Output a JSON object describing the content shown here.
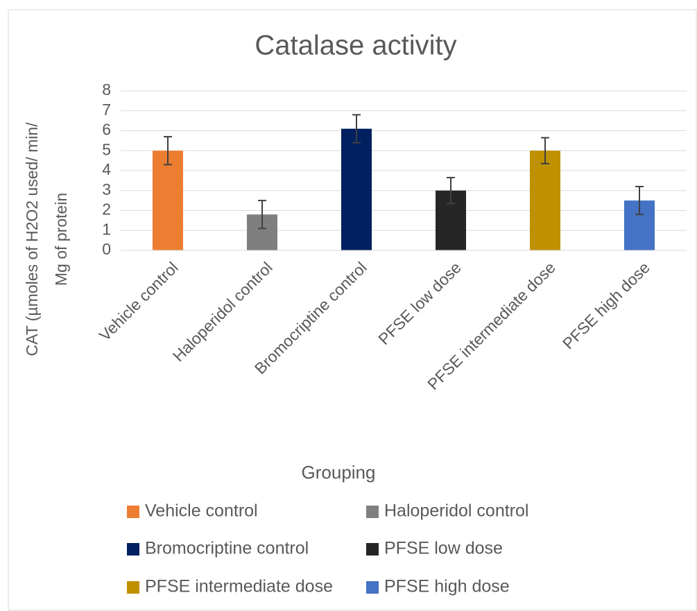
{
  "chart_data": {
    "type": "bar",
    "title": "Catalase activity",
    "categories": [
      "Vehicle control",
      "Haloperidol control",
      "Bromocriptine control",
      "PFSE low dose",
      "PFSE intermediate dose",
      "PFSE high dose"
    ],
    "values": [
      5.0,
      1.8,
      6.1,
      3.0,
      5.0,
      2.5
    ],
    "errors": [
      0.7,
      0.7,
      0.7,
      0.65,
      0.65,
      0.7
    ],
    "colors": [
      "#ed7d31",
      "#7f7f7f",
      "#002060",
      "#262626",
      "#bf9000",
      "#4472c4"
    ],
    "x_label": "Grouping",
    "y_label": [
      "CAT (µmoles of H2O2 used/ min/",
      "Mg of protein"
    ],
    "ylim": [
      0,
      8
    ],
    "yticks": [
      0,
      1,
      2,
      3,
      4,
      5,
      6,
      7,
      8
    ],
    "grid": true,
    "legend": "bottom"
  }
}
